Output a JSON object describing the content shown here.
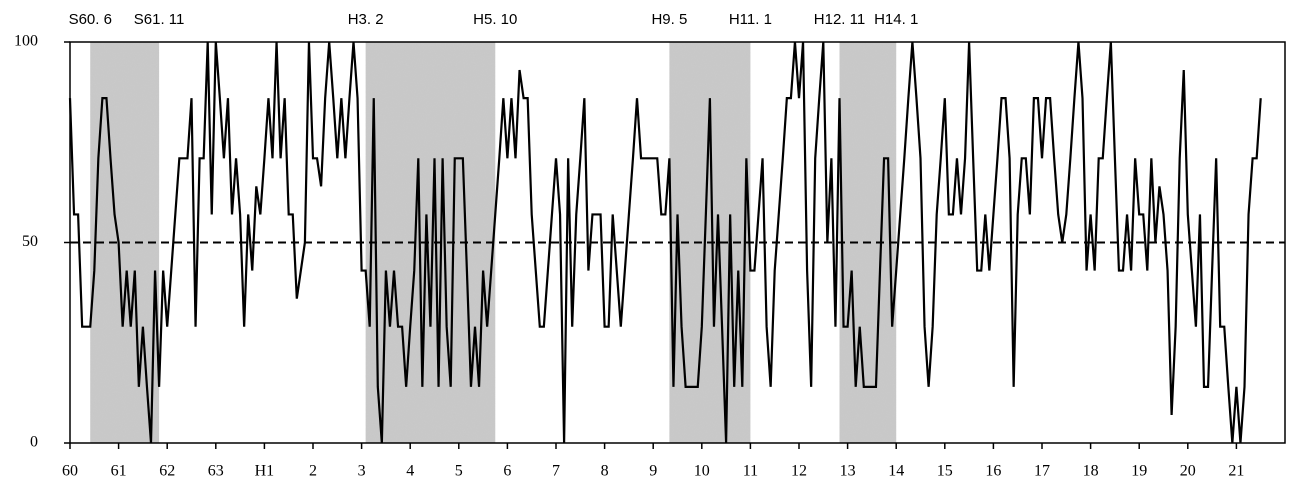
{
  "chart_data": {
    "type": "line",
    "color": "#000000",
    "shade_color": "#b8b8b8",
    "xlim": [
      0,
      300
    ],
    "ylim": [
      0,
      100
    ],
    "yticks": [
      0,
      50,
      100
    ],
    "reference_line": 50,
    "xticks": [
      {
        "value": 0,
        "label": "60"
      },
      {
        "value": 12,
        "label": "61"
      },
      {
        "value": 24,
        "label": "62"
      },
      {
        "value": 36,
        "label": "63"
      },
      {
        "value": 48,
        "label": "H1"
      },
      {
        "value": 60,
        "label": "2"
      },
      {
        "value": 72,
        "label": "3"
      },
      {
        "value": 84,
        "label": "4"
      },
      {
        "value": 96,
        "label": "5"
      },
      {
        "value": 108,
        "label": "6"
      },
      {
        "value": 120,
        "label": "7"
      },
      {
        "value": 132,
        "label": "8"
      },
      {
        "value": 144,
        "label": "9"
      },
      {
        "value": 156,
        "label": "10"
      },
      {
        "value": 168,
        "label": "11"
      },
      {
        "value": 180,
        "label": "12"
      },
      {
        "value": 192,
        "label": "13"
      },
      {
        "value": 204,
        "label": "14"
      },
      {
        "value": 216,
        "label": "15"
      },
      {
        "value": 228,
        "label": "16"
      },
      {
        "value": 240,
        "label": "17"
      },
      {
        "value": 252,
        "label": "18"
      },
      {
        "value": 264,
        "label": "19"
      },
      {
        "value": 276,
        "label": "20"
      },
      {
        "value": 288,
        "label": "21"
      }
    ],
    "shaded_periods": [
      {
        "start": 5,
        "end": 22,
        "start_label": "S60. 6",
        "end_label": "S61. 11"
      },
      {
        "start": 73,
        "end": 105,
        "start_label": "H3. 2",
        "end_label": "H5. 10"
      },
      {
        "start": 148,
        "end": 168,
        "start_label": "H9. 5",
        "end_label": "H11. 1"
      },
      {
        "start": 190,
        "end": 204,
        "start_label": "H12. 11",
        "end_label": "H14. 1"
      }
    ],
    "x": [
      0,
      1,
      2,
      3,
      4,
      5,
      6,
      7,
      8,
      9,
      10,
      11,
      12,
      13,
      14,
      15,
      16,
      17,
      18,
      19,
      20,
      21,
      22,
      23,
      24,
      25,
      26,
      27,
      28,
      29,
      30,
      31,
      32,
      33,
      34,
      35,
      36,
      37,
      38,
      39,
      40,
      41,
      42,
      43,
      44,
      45,
      46,
      47,
      48,
      49,
      50,
      51,
      52,
      53,
      54,
      55,
      56,
      57,
      58,
      59,
      60,
      61,
      62,
      63,
      64,
      65,
      66,
      67,
      68,
      69,
      70,
      71,
      72,
      73,
      74,
      75,
      76,
      77,
      78,
      79,
      80,
      81,
      82,
      83,
      84,
      85,
      86,
      87,
      88,
      89,
      90,
      91,
      92,
      93,
      94,
      95,
      96,
      97,
      98,
      99,
      100,
      101,
      102,
      103,
      104,
      105,
      106,
      107,
      108,
      109,
      110,
      111,
      112,
      113,
      114,
      115,
      116,
      117,
      118,
      119,
      120,
      121,
      122,
      123,
      124,
      125,
      126,
      127,
      128,
      129,
      130,
      131,
      132,
      133,
      134,
      135,
      136,
      137,
      138,
      139,
      140,
      141,
      142,
      143,
      144,
      145,
      146,
      147,
      148,
      149,
      150,
      151,
      152,
      153,
      154,
      155,
      156,
      157,
      158,
      159,
      160,
      161,
      162,
      163,
      164,
      165,
      166,
      167,
      168,
      169,
      170,
      171,
      172,
      173,
      174,
      175,
      176,
      177,
      178,
      179,
      180,
      181,
      182,
      183,
      184,
      185,
      186,
      187,
      188,
      189,
      190,
      191,
      192,
      193,
      194,
      195,
      196,
      197,
      198,
      199,
      200,
      201,
      202,
      203,
      204,
      205,
      206,
      207,
      208,
      209,
      210,
      211,
      212,
      213,
      214,
      215,
      216,
      217,
      218,
      219,
      220,
      221,
      222,
      223,
      224,
      225,
      226,
      227,
      228,
      229,
      230,
      231,
      232,
      233,
      234,
      235,
      236,
      237,
      238,
      239,
      240,
      241,
      242,
      243,
      244,
      245,
      246,
      247,
      248,
      249,
      250,
      251,
      252,
      253,
      254,
      255,
      256,
      257,
      258,
      259,
      260,
      261,
      262,
      263,
      264,
      265,
      266,
      267,
      268,
      269,
      270,
      271,
      272,
      273,
      274,
      275,
      276,
      277,
      278,
      279,
      280,
      281,
      282,
      283,
      284,
      285,
      286,
      287,
      288,
      289,
      290,
      291,
      292,
      293,
      294
    ],
    "values": [
      86,
      57,
      57,
      29,
      29,
      29,
      43,
      71,
      86,
      86,
      71,
      57,
      50,
      29,
      43,
      29,
      43,
      14,
      29,
      14,
      0,
      43,
      14,
      43,
      29,
      43,
      57,
      71,
      71,
      71,
      86,
      29,
      71,
      71,
      100,
      57,
      100,
      86,
      71,
      86,
      57,
      71,
      57,
      29,
      57,
      43,
      64,
      57,
      71,
      86,
      71,
      100,
      71,
      86,
      57,
      57,
      36,
      43,
      50,
      100,
      71,
      71,
      64,
      86,
      100,
      86,
      71,
      86,
      71,
      86,
      100,
      86,
      43,
      43,
      29,
      86,
      14,
      0,
      43,
      29,
      43,
      29,
      29,
      14,
      29,
      43,
      71,
      14,
      57,
      29,
      71,
      14,
      71,
      29,
      14,
      71,
      71,
      71,
      43,
      14,
      29,
      14,
      43,
      29,
      43,
      57,
      71,
      86,
      71,
      86,
      71,
      93,
      86,
      86,
      57,
      43,
      29,
      29,
      43,
      57,
      71,
      57,
      0,
      71,
      29,
      57,
      71,
      86,
      43,
      57,
      57,
      57,
      29,
      29,
      57,
      43,
      29,
      43,
      57,
      71,
      86,
      71,
      71,
      71,
      71,
      71,
      57,
      57,
      71,
      14,
      57,
      29,
      14,
      14,
      14,
      14,
      29,
      57,
      86,
      29,
      57,
      29,
      0,
      57,
      14,
      43,
      14,
      71,
      43,
      43,
      57,
      71,
      29,
      14,
      43,
      57,
      71,
      86,
      86,
      100,
      86,
      100,
      43,
      14,
      71,
      86,
      100,
      50,
      71,
      29,
      86,
      29,
      29,
      43,
      14,
      29,
      14,
      14,
      14,
      14,
      43,
      71,
      71,
      29,
      43,
      57,
      71,
      86,
      100,
      86,
      71,
      29,
      14,
      29,
      57,
      71,
      86,
      57,
      57,
      71,
      57,
      71,
      100,
      71,
      43,
      43,
      57,
      43,
      57,
      71,
      86,
      86,
      71,
      14,
      57,
      71,
      71,
      57,
      86,
      86,
      71,
      86,
      86,
      71,
      57,
      50,
      57,
      71,
      86,
      100,
      86,
      43,
      57,
      43,
      71,
      71,
      86,
      100,
      71,
      43,
      43,
      57,
      43,
      71,
      57,
      57,
      43,
      71,
      50,
      64,
      57,
      43,
      7,
      29,
      71,
      93,
      57,
      43,
      29,
      57,
      14,
      14,
      43,
      71,
      29,
      29,
      14,
      0,
      14,
      0,
      14,
      57,
      71,
      71,
      86
    ]
  }
}
